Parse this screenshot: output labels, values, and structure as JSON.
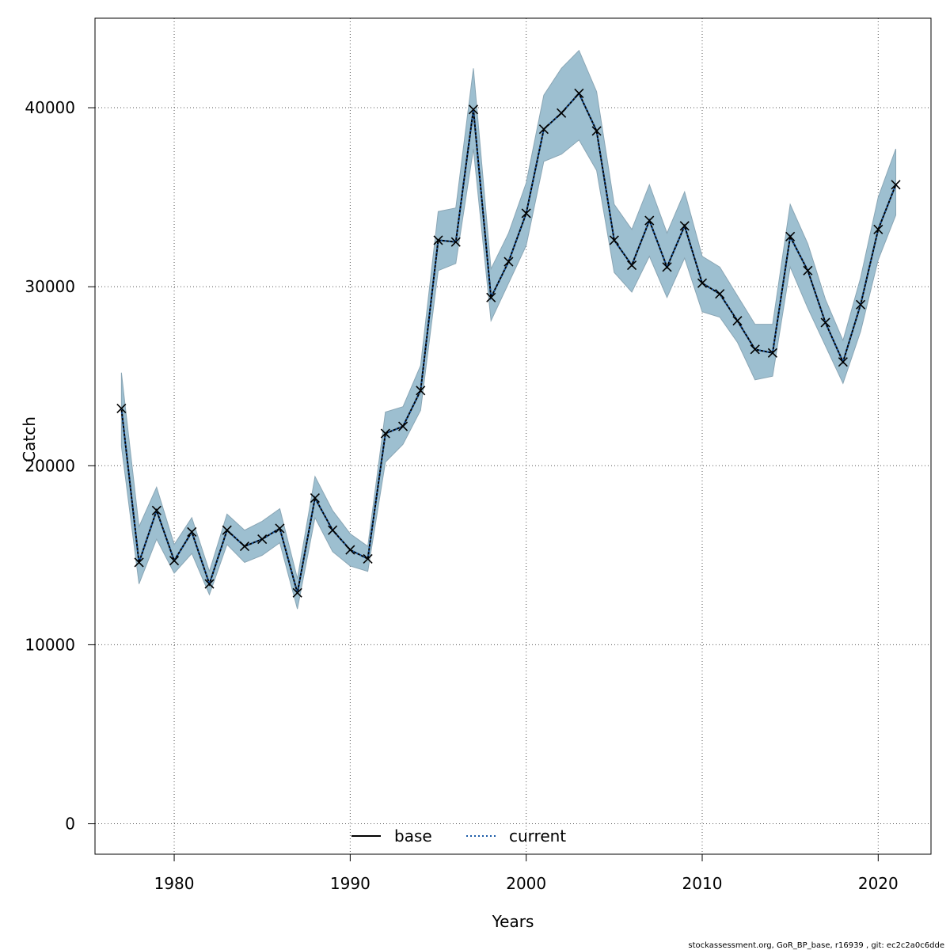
{
  "chart_data": {
    "type": "line",
    "title": "",
    "xlabel": "Years",
    "ylabel": "Catch",
    "xlim": [
      1975.5,
      2023
    ],
    "ylim": [
      -1700,
      45000
    ],
    "x_ticks": [
      1980,
      1990,
      2000,
      2010,
      2020
    ],
    "y_ticks": [
      0,
      10000,
      20000,
      30000,
      40000
    ],
    "grid": true,
    "legend_position": "bottom",
    "band_color": "#9dbfd0",
    "band_edge_color": "#8aa6b5",
    "x": [
      1977,
      1978,
      1979,
      1980,
      1981,
      1982,
      1983,
      1984,
      1985,
      1986,
      1987,
      1988,
      1989,
      1990,
      1991,
      1992,
      1993,
      1994,
      1995,
      1996,
      1997,
      1998,
      1999,
      2000,
      2001,
      2002,
      2003,
      2004,
      2005,
      2006,
      2007,
      2008,
      2009,
      2010,
      2011,
      2012,
      2013,
      2014,
      2015,
      2016,
      2017,
      2018,
      2019,
      2020,
      2021
    ],
    "lower": [
      21100,
      13400,
      15900,
      14000,
      15100,
      12800,
      15600,
      14600,
      15000,
      15700,
      12000,
      17100,
      15200,
      14400,
      14100,
      20200,
      21200,
      23100,
      30900,
      31300,
      37700,
      28100,
      30200,
      32300,
      37000,
      37400,
      38200,
      36500,
      30800,
      29700,
      31700,
      29400,
      31600,
      28600,
      28300,
      26900,
      24800,
      25000,
      31100,
      28800,
      26700,
      24600,
      27500,
      31500,
      34000
    ],
    "upper": [
      25200,
      16600,
      18800,
      15600,
      17100,
      14100,
      17300,
      16400,
      16900,
      17600,
      13700,
      19400,
      17500,
      16200,
      15500,
      23000,
      23300,
      25600,
      34200,
      34400,
      42200,
      31000,
      33000,
      35800,
      40700,
      42200,
      43200,
      40900,
      34600,
      33200,
      35700,
      33000,
      35300,
      31700,
      31100,
      29500,
      27900,
      27900,
      34600,
      32400,
      29300,
      27000,
      30500,
      35000,
      37700
    ],
    "series": [
      {
        "name": "base",
        "color": "#000000",
        "style": "solid",
        "values": [
          23200,
          14600,
          17500,
          14700,
          16300,
          13400,
          16400,
          15500,
          15900,
          16500,
          12900,
          18200,
          16400,
          15300,
          14800,
          21800,
          22200,
          24200,
          32600,
          32500,
          39900,
          29400,
          31400,
          34100,
          38800,
          39700,
          40800,
          38700,
          32600,
          31200,
          33700,
          31100,
          33400,
          30200,
          29600,
          28100,
          26500,
          26300,
          32800,
          30900,
          28000,
          25800,
          29000,
          33200,
          35700
        ]
      },
      {
        "name": "current",
        "color": "#1a5aa8",
        "style": "dotted",
        "values": [
          23200,
          14600,
          17500,
          14700,
          16300,
          13400,
          16400,
          15500,
          15900,
          16500,
          12900,
          18200,
          16400,
          15300,
          14800,
          21800,
          22200,
          24200,
          32600,
          32500,
          39900,
          29400,
          31400,
          34100,
          38800,
          39700,
          40800,
          38700,
          32600,
          31200,
          33700,
          31100,
          33400,
          30200,
          29600,
          28100,
          26500,
          26300,
          32800,
          30900,
          28000,
          25800,
          29000,
          33200,
          35700
        ]
      }
    ],
    "marker": "x"
  },
  "footer": "stockassessment.org, GoR_BP_base, r16939 , git: ec2c2a0c6dde"
}
